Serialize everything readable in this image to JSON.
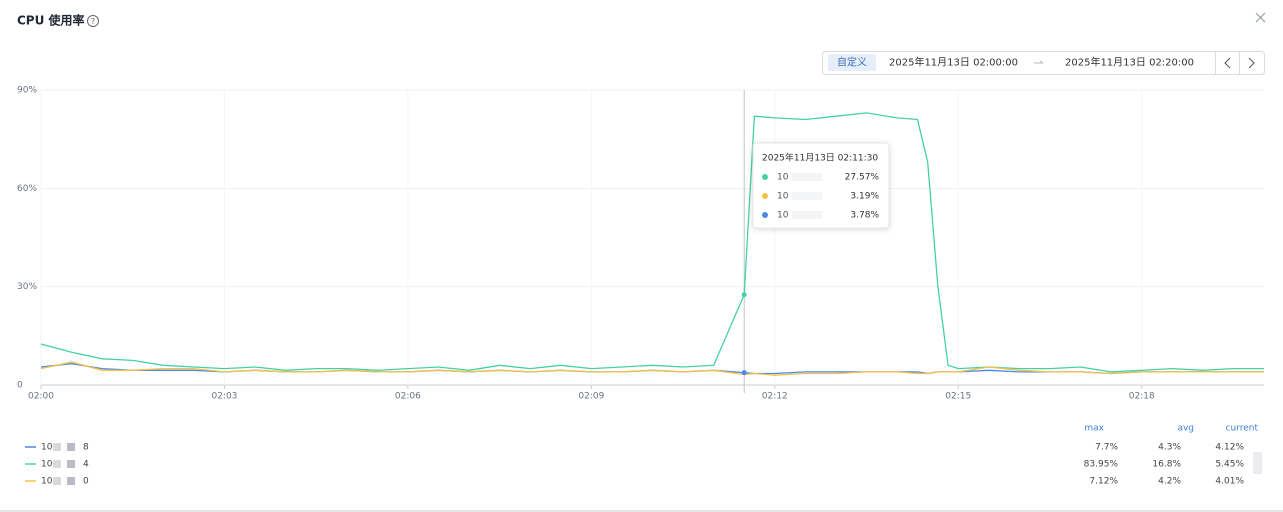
{
  "header": {
    "title": "CPU 使用率",
    "help": "?"
  },
  "range": {
    "tag": "自定义",
    "start": "2025年11月13日 02:00:00",
    "end": "2025年11月13日 02:20:00"
  },
  "chart_data": {
    "type": "line",
    "x": [
      "02:00:00",
      "02:00:30",
      "02:01:00",
      "02:01:30",
      "02:02:00",
      "02:02:30",
      "02:03:00",
      "02:03:30",
      "02:04:00",
      "02:04:30",
      "02:05:00",
      "02:05:30",
      "02:06:00",
      "02:06:30",
      "02:07:00",
      "02:07:30",
      "02:08:00",
      "02:08:30",
      "02:09:00",
      "02:09:30",
      "02:10:00",
      "02:10:30",
      "02:11:00",
      "02:11:30",
      "02:11:40",
      "02:12:00",
      "02:12:30",
      "02:13:00",
      "02:13:30",
      "02:14:00",
      "02:14:20",
      "02:14:30",
      "02:14:40",
      "02:14:50",
      "02:15:00",
      "02:15:30",
      "02:16:00",
      "02:16:30",
      "02:17:00",
      "02:17:30",
      "02:18:00",
      "02:18:30",
      "02:19:00",
      "02:19:30",
      "02:20:00"
    ],
    "xlim": [
      "02:00:00",
      "02:20:00"
    ],
    "xticks": [
      "02:00",
      "02:03",
      "02:06",
      "02:09",
      "02:12",
      "02:15",
      "02:18"
    ],
    "ylim": [
      0,
      90
    ],
    "yticks": [
      0,
      {
        "value": 30,
        "label": "30%"
      },
      {
        "value": 60,
        "label": "60%"
      },
      {
        "value": 90,
        "label": "90%"
      }
    ],
    "grid": true,
    "series": [
      {
        "name": "10",
        "suffix": "8",
        "color": "#4f86e8",
        "values": [
          5.5,
          6.5,
          5,
          4.5,
          4.5,
          4.5,
          4,
          4.5,
          4,
          4,
          4.5,
          4,
          4,
          4.5,
          4,
          4.5,
          4,
          4.5,
          4,
          4,
          4.5,
          4,
          4.5,
          3.78,
          3.5,
          3.5,
          4,
          4,
          4,
          4,
          4,
          3.5,
          4,
          4,
          4,
          4.5,
          4,
          4,
          4,
          3.5,
          4,
          4,
          4,
          4,
          4
        ]
      },
      {
        "name": "10",
        "suffix": "4",
        "color": "#45d2a0",
        "values": [
          12.5,
          10,
          8,
          7.5,
          6,
          5.5,
          5,
          5.5,
          4.5,
          5,
          5,
          4.5,
          5,
          5.5,
          4.5,
          6,
          5,
          6,
          5,
          5.5,
          6,
          5.5,
          6,
          27.57,
          82,
          81.5,
          81,
          82,
          83,
          81.5,
          81,
          68,
          30,
          6,
          5,
          5.5,
          5,
          5,
          5.5,
          4,
          4.5,
          5,
          4.5,
          5,
          5
        ]
      },
      {
        "name": "10",
        "suffix": "0",
        "color": "#f5c242",
        "values": [
          5,
          7,
          4.5,
          4.5,
          5,
          5,
          4,
          4.5,
          4,
          4,
          4.5,
          4,
          4,
          4.5,
          4,
          4.5,
          4,
          4.5,
          4,
          4,
          4.5,
          4,
          4.5,
          3.19,
          3.5,
          3,
          3.5,
          3.5,
          4,
          4,
          3.5,
          3.5,
          4,
          4,
          4,
          5.5,
          4.5,
          4,
          4,
          3.5,
          4,
          4,
          4,
          4,
          4
        ]
      }
    ],
    "tooltip": {
      "time": "2025年11月13日 02:11:30",
      "x": "02:11:30",
      "rows": [
        {
          "name": "10",
          "color": "#45d2a0",
          "value": 27.57,
          "label": "27.57%"
        },
        {
          "name": "10",
          "color": "#f5c242",
          "value": 3.19,
          "label": "3.19%"
        },
        {
          "name": "10",
          "color": "#4f86e8",
          "value": 3.78,
          "label": "3.78%"
        }
      ]
    }
  },
  "legend_table": {
    "headers": [
      "max",
      "avg",
      "current"
    ],
    "rows": [
      [
        "7.7%",
        "4.3%",
        "4.12%"
      ],
      [
        "83.95%",
        "16.8%",
        "5.45%"
      ],
      [
        "7.12%",
        "4.2%",
        "4.01%"
      ]
    ]
  }
}
